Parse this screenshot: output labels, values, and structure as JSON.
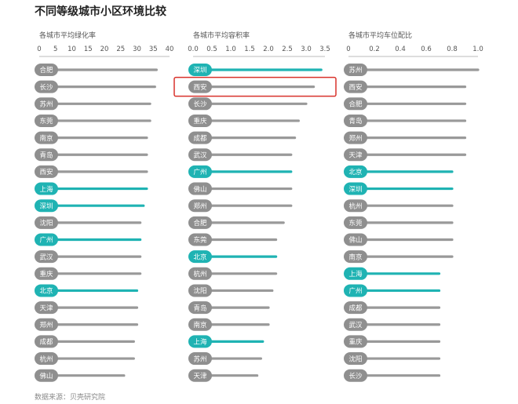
{
  "title": "不同等级城市小区环境比较",
  "source": "数据来源：贝壳研究院",
  "colors": {
    "highlight": "#1fb3b3",
    "normal": "#999999",
    "pill_normal": "#8f8f8f",
    "callout": "#d9322b"
  },
  "chart_data": [
    {
      "type": "bar",
      "orientation": "horizontal",
      "title": "各城市平均绿化率",
      "xlim": [
        0,
        40
      ],
      "ticks": [
        0,
        5,
        10,
        15,
        20,
        25,
        30,
        35,
        40
      ],
      "categories": [
        "合肥",
        "长沙",
        "苏州",
        "东莞",
        "南京",
        "青岛",
        "西安",
        "上海",
        "深圳",
        "沈阳",
        "广州",
        "武汉",
        "重庆",
        "北京",
        "天津",
        "郑州",
        "成都",
        "杭州",
        "佛山"
      ],
      "values": [
        36,
        35.5,
        34,
        34,
        33,
        33,
        33,
        33,
        32,
        31,
        31,
        31,
        31,
        30,
        30,
        30,
        29,
        29,
        26
      ],
      "highlight": [
        false,
        false,
        false,
        false,
        false,
        false,
        false,
        true,
        true,
        false,
        true,
        false,
        false,
        true,
        false,
        false,
        false,
        false,
        false
      ]
    },
    {
      "type": "bar",
      "orientation": "horizontal",
      "title": "各城市平均容积率",
      "xlim": [
        0,
        3.5
      ],
      "ticks": [
        "0.0",
        "0.5",
        "1.0",
        "1.5",
        "2.0",
        "2.5",
        "3.0",
        "3.5"
      ],
      "categories": [
        "深圳",
        "西安",
        "长沙",
        "重庆",
        "成都",
        "武汉",
        "广州",
        "佛山",
        "郑州",
        "合肥",
        "东莞",
        "北京",
        "杭州",
        "沈阳",
        "青岛",
        "南京",
        "上海",
        "苏州",
        "天津"
      ],
      "values": [
        3.4,
        3.2,
        3.0,
        2.8,
        2.7,
        2.6,
        2.6,
        2.6,
        2.6,
        2.4,
        2.2,
        2.2,
        2.2,
        2.1,
        2.0,
        2.0,
        1.85,
        1.8,
        1.7
      ],
      "highlight": [
        true,
        false,
        false,
        false,
        false,
        false,
        true,
        false,
        false,
        false,
        false,
        true,
        false,
        false,
        false,
        false,
        true,
        false,
        false
      ],
      "callout": "西安"
    },
    {
      "type": "bar",
      "orientation": "horizontal",
      "title": "各城市平均车位配比",
      "xlim": [
        0,
        1.0
      ],
      "ticks": [
        "0",
        "0.2",
        "0.4",
        "0.6",
        "0.8",
        "1.0"
      ],
      "categories": [
        "苏州",
        "西安",
        "合肥",
        "青岛",
        "郑州",
        "天津",
        "北京",
        "深圳",
        "杭州",
        "东莞",
        "佛山",
        "南京",
        "上海",
        "广州",
        "成都",
        "武汉",
        "重庆",
        "沈阳",
        "长沙"
      ],
      "values": [
        1.0,
        0.9,
        0.9,
        0.9,
        0.9,
        0.9,
        0.8,
        0.8,
        0.8,
        0.8,
        0.8,
        0.8,
        0.7,
        0.7,
        0.7,
        0.7,
        0.7,
        0.7,
        0.7
      ],
      "highlight": [
        false,
        false,
        false,
        false,
        false,
        false,
        true,
        true,
        false,
        false,
        false,
        false,
        true,
        true,
        false,
        false,
        false,
        false,
        false
      ]
    }
  ]
}
